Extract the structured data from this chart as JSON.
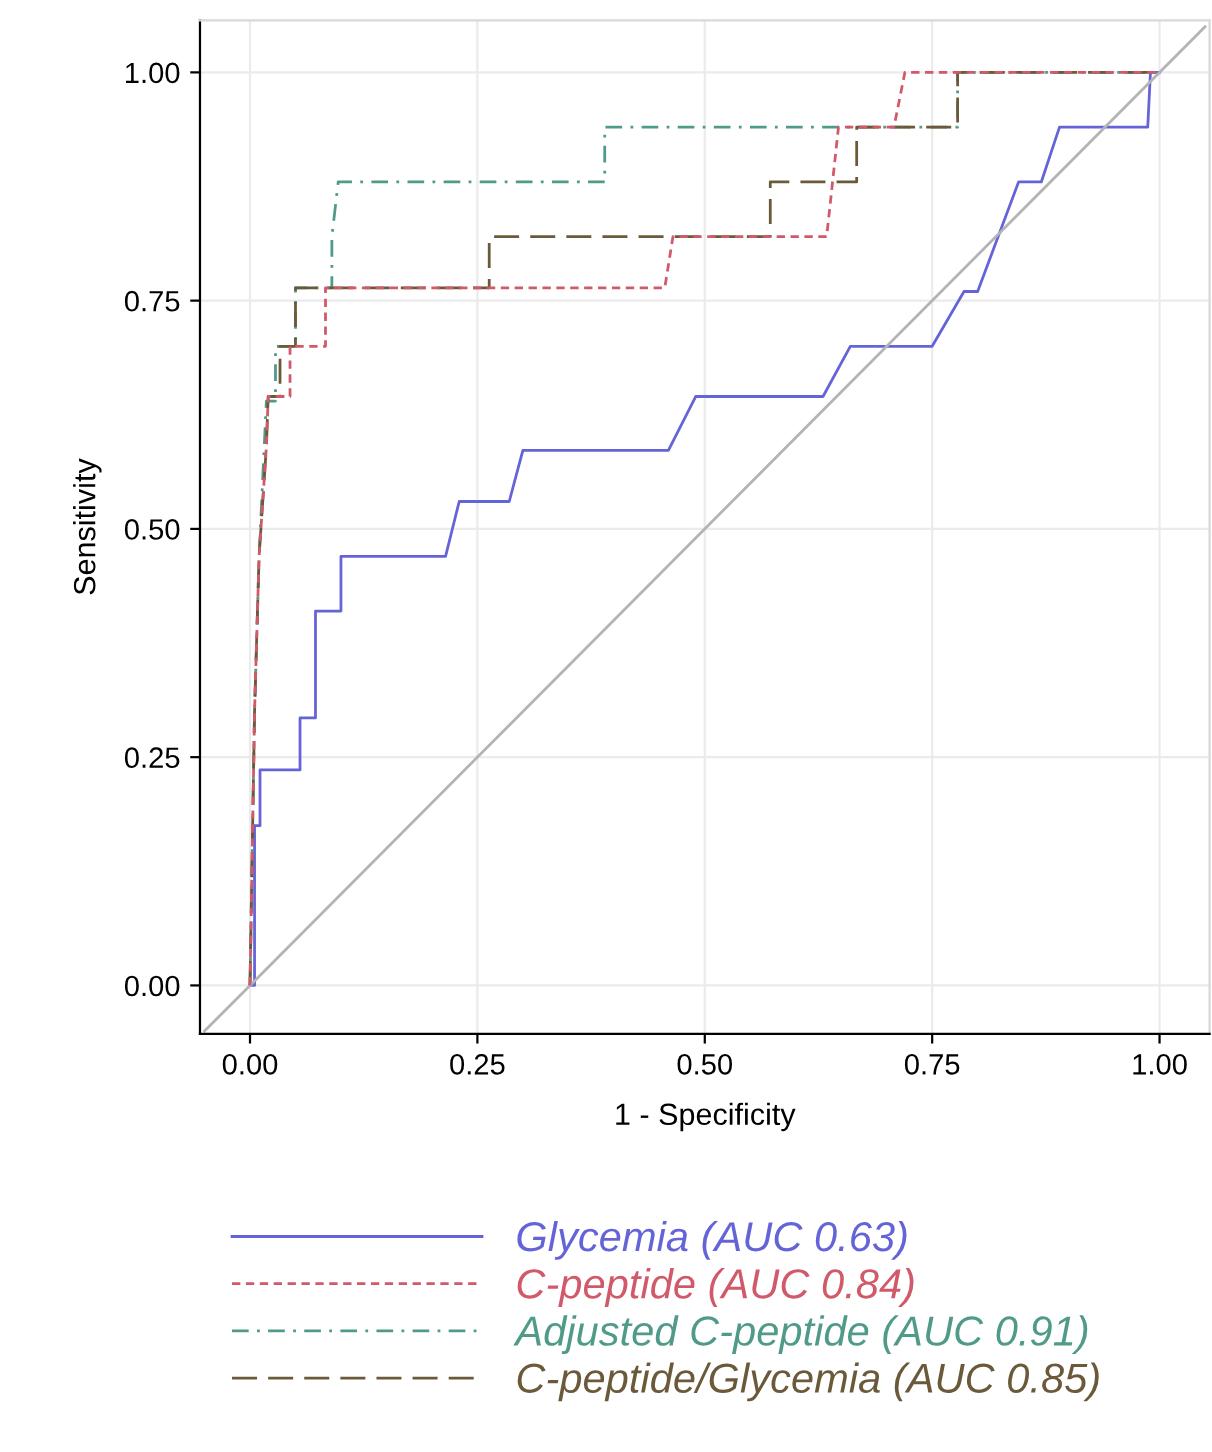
{
  "chart_data": {
    "type": "line",
    "xlabel": "1 - Specificity",
    "ylabel": "Sensitivity",
    "xlim": [
      -0.055,
      1.055
    ],
    "ylim": [
      -0.053,
      1.057
    ],
    "xticks": [
      {
        "value": 0,
        "label": "0.00"
      },
      {
        "value": 0.25,
        "label": "0.25"
      },
      {
        "value": 0.5,
        "label": "0.50"
      },
      {
        "value": 0.75,
        "label": "0.75"
      },
      {
        "value": 1,
        "label": "1.00"
      }
    ],
    "yticks": [
      {
        "value": 0,
        "label": "0.00"
      },
      {
        "value": 0.25,
        "label": "0.25"
      },
      {
        "value": 0.5,
        "label": "0.50"
      },
      {
        "value": 0.75,
        "label": "0.75"
      },
      {
        "value": 1,
        "label": "1.00"
      }
    ],
    "grid": true,
    "legend": "bottom",
    "marker": "none",
    "series": [
      {
        "name": "Glycemia (AUC 0.63)",
        "color": "#6464d8",
        "line_style": "solid",
        "x": [
          0,
          0.005,
          0.005,
          0.011,
          0.011,
          0.055,
          0.055,
          0.072,
          0.072,
          0.1,
          0.1,
          0.215,
          0.23,
          0.285,
          0.3,
          0.46,
          0.49,
          0.63,
          0.66,
          0.75,
          0.785,
          0.8,
          0.845,
          0.87,
          0.89,
          0.987,
          0.99,
          1
        ],
        "values": [
          0,
          0,
          0.175,
          0.175,
          0.236,
          0.236,
          0.293,
          0.293,
          0.41,
          0.41,
          0.47,
          0.47,
          0.53,
          0.53,
          0.586,
          0.586,
          0.645,
          0.645,
          0.7,
          0.7,
          0.76,
          0.76,
          0.88,
          0.88,
          0.94,
          0.94,
          1,
          1
        ]
      },
      {
        "name": "C-peptide (AUC 0.84)",
        "color": "#d05a6a",
        "line_style": "dashed",
        "x": [
          0,
          0.005,
          0.01,
          0.018,
          0.02,
          0.044,
          0.044,
          0.083,
          0.083,
          0.456,
          0.465,
          0.634,
          0.647,
          0.708,
          0.72,
          1
        ],
        "values": [
          0,
          0.3,
          0.47,
          0.59,
          0.645,
          0.645,
          0.7,
          0.7,
          0.764,
          0.764,
          0.82,
          0.82,
          0.94,
          0.94,
          1,
          1
        ]
      },
      {
        "name": "Adjusted C-peptide (AUC 0.91)",
        "color": "#4f9a88",
        "line_style": "dashdot",
        "x": [
          0,
          0.005,
          0.01,
          0.018,
          0.028,
          0.028,
          0.05,
          0.05,
          0.09,
          0.09,
          0.097,
          0.39,
          0.39,
          0.778,
          0.778,
          1
        ],
        "values": [
          0,
          0.3,
          0.47,
          0.64,
          0.64,
          0.7,
          0.7,
          0.764,
          0.764,
          0.82,
          0.88,
          0.88,
          0.94,
          0.94,
          1,
          1
        ]
      },
      {
        "name": "C-peptide/Glycemia (AUC 0.85)",
        "color": "#6b5a3a",
        "line_style": "longdash",
        "x": [
          0,
          0.005,
          0.01,
          0.018,
          0.02,
          0.033,
          0.033,
          0.05,
          0.05,
          0.263,
          0.263,
          0.572,
          0.572,
          0.667,
          0.667,
          0.778,
          0.778,
          1
        ],
        "values": [
          0,
          0.3,
          0.47,
          0.59,
          0.645,
          0.645,
          0.7,
          0.7,
          0.764,
          0.764,
          0.82,
          0.82,
          0.88,
          0.88,
          0.94,
          0.94,
          1,
          1
        ]
      },
      {
        "color": "#b4b4b4",
        "line_style": "solid",
        "x": [
          -0.05,
          1.05
        ],
        "values": [
          -0.05,
          1.05
        ]
      }
    ]
  }
}
